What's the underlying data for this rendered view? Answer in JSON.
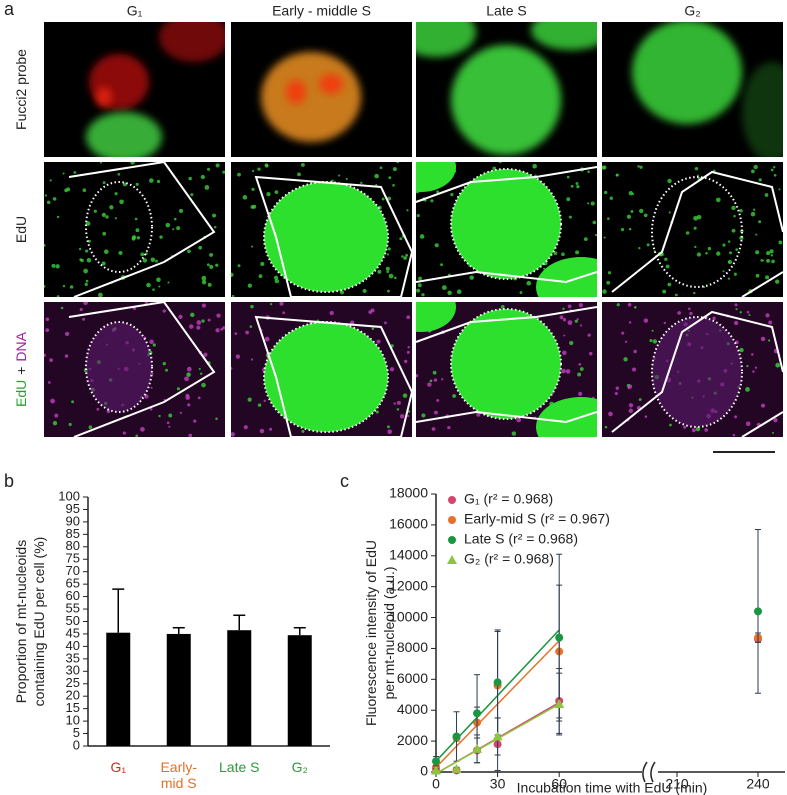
{
  "panel_a": {
    "label": "a",
    "columns": [
      "G₁",
      "Early - middle S",
      "Late S",
      "G₂"
    ],
    "rows": [
      [
        "Fucci2 probe"
      ],
      [
        "EdU"
      ],
      [
        "EdU",
        "+",
        "DNA"
      ]
    ]
  },
  "chart_data": [
    {
      "type": "bar",
      "panel": "b",
      "ylabel": [
        "Proportion of mt-nucleoids",
        "containing EdU per cell (%)"
      ],
      "categories": [
        [
          "G₁"
        ],
        [
          "Early-",
          "mid S"
        ],
        [
          "Late S"
        ],
        [
          "G₂"
        ]
      ],
      "category_colors": [
        "#c0301a",
        "#e0712a",
        "#2f9a3a",
        "#2f9a3a"
      ],
      "values": [
        45.5,
        45,
        46.5,
        44.5
      ],
      "errors": [
        17.5,
        2.5,
        6,
        3
      ],
      "color": "#000000",
      "ylim": [
        0,
        100
      ],
      "yticks": [
        0,
        5,
        10,
        15,
        20,
        25,
        30,
        35,
        40,
        45,
        50,
        55,
        60,
        65,
        70,
        75,
        80,
        85,
        90,
        95,
        100
      ]
    },
    {
      "type": "scatter",
      "panel": "c",
      "ylabel": [
        "Fluorescence intensity of EdU",
        "per mt-nucleoid (a.u.)"
      ],
      "xlabel": "Incubation time with EdU (min)",
      "x": [
        0,
        10,
        20,
        30,
        60,
        240
      ],
      "xlim": [
        0,
        250
      ],
      "xbreak": [
        75,
        200
      ],
      "xticks": [
        0,
        30,
        60,
        210,
        240
      ],
      "ylim": [
        0,
        18000
      ],
      "yticks": [
        0,
        2000,
        4000,
        6000,
        8000,
        10000,
        12000,
        14000,
        16000,
        18000
      ],
      "series": [
        {
          "name": "G₁ (r² = 0.968)",
          "color": "#d6456e",
          "marker": "circle",
          "values": [
            200,
            100,
            1400,
            1800,
            4600,
            8600
          ],
          "errors": [
            100,
            100,
            800,
            1700,
            2100,
            200
          ],
          "fit": {
            "x": [
              0,
              60
            ],
            "values": [
              -100,
              4500
            ]
          }
        },
        {
          "name": "Early-mid S (r² = 0.967)",
          "color": "#e8702a",
          "marker": "circle",
          "values": [
            300,
            2200,
            3200,
            5600,
            7800,
            8700
          ],
          "errors": [
            100,
            200,
            1000,
            3500,
            4300,
            300
          ],
          "fit": {
            "x": [
              0,
              60
            ],
            "values": [
              300,
              8500
            ]
          }
        },
        {
          "name": "Late S (r² = 0.968)",
          "color": "#1a9641",
          "marker": "circle",
          "values": [
            700,
            2300,
            3800,
            5800,
            8700,
            10400
          ],
          "errors": [
            300,
            1600,
            2500,
            3400,
            5400,
            5300
          ],
          "fit": {
            "x": [
              0,
              60
            ],
            "values": [
              700,
              9200
            ]
          }
        },
        {
          "name": "G₂ (r² = 0.968)",
          "color": "#8cc63f",
          "marker": "triangle",
          "values": [
            100,
            200,
            1500,
            2300,
            4400,
            null
          ],
          "errors": [
            100,
            100,
            900,
            1200,
            2000,
            null
          ],
          "fit": {
            "x": [
              0,
              60
            ],
            "values": [
              -100,
              4400
            ]
          }
        }
      ]
    }
  ]
}
